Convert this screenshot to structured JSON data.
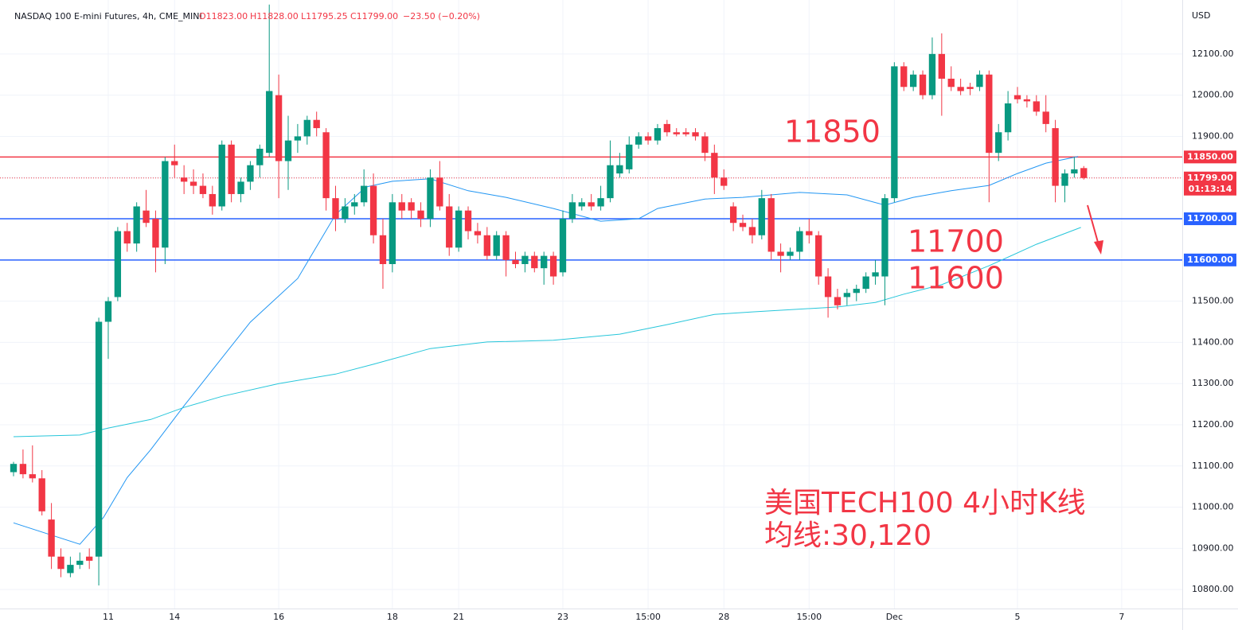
{
  "chart_data": {
    "type": "candlestick",
    "header": {
      "symbol": "NASDAQ 100 E-mini Futures, 4h, CME_MINI",
      "ohlc": [
        "O11823.00",
        "H11828.00",
        "L11795.25",
        "C11799.00"
      ],
      "change": "−23.50 (−0.20%)"
    },
    "currency": "USD",
    "up_color": "#089981",
    "down_color": "#f23645",
    "candles": [
      [
        11085,
        11110,
        11075,
        11105
      ],
      [
        11105,
        11140,
        11070,
        11080
      ],
      [
        11080,
        11150,
        11060,
        11070
      ],
      [
        11070,
        11090,
        10980,
        10990
      ],
      [
        10970,
        11010,
        10850,
        10880
      ],
      [
        10880,
        10900,
        10830,
        10850
      ],
      [
        10840,
        10880,
        10830,
        10860
      ],
      [
        10860,
        10890,
        10850,
        10870
      ],
      [
        10880,
        10900,
        10850,
        10870
      ],
      [
        10880,
        11460,
        10810,
        11450
      ],
      [
        11450,
        11510,
        11360,
        11500
      ],
      [
        11510,
        11680,
        11500,
        11670
      ],
      [
        11670,
        11690,
        11620,
        11640
      ],
      [
        11640,
        11740,
        11620,
        11730
      ],
      [
        11720,
        11770,
        11680,
        11690
      ],
      [
        11700,
        11720,
        11570,
        11630
      ],
      [
        11630,
        11850,
        11590,
        11840
      ],
      [
        11840,
        11880,
        11800,
        11830
      ],
      [
        11800,
        11830,
        11760,
        11790
      ],
      [
        11790,
        11820,
        11760,
        11780
      ],
      [
        11780,
        11810,
        11750,
        11760
      ],
      [
        11760,
        11780,
        11710,
        11730
      ],
      [
        11730,
        11890,
        11720,
        11880
      ],
      [
        11880,
        11890,
        11740,
        11760
      ],
      [
        11760,
        11800,
        11740,
        11790
      ],
      [
        11790,
        11840,
        11770,
        11830
      ],
      [
        11830,
        11880,
        11800,
        11870
      ],
      [
        11860,
        12220,
        11850,
        12010
      ],
      [
        12000,
        12050,
        11750,
        11840
      ],
      [
        11840,
        11950,
        11770,
        11890
      ],
      [
        11890,
        11930,
        11860,
        11900
      ],
      [
        11900,
        11950,
        11880,
        11940
      ],
      [
        11940,
        11960,
        11900,
        11920
      ],
      [
        11910,
        11920,
        11720,
        11750
      ],
      [
        11750,
        11780,
        11670,
        11700
      ],
      [
        11700,
        11750,
        11690,
        11730
      ],
      [
        11730,
        11760,
        11710,
        11740
      ],
      [
        11740,
        11820,
        11730,
        11780
      ],
      [
        11780,
        11810,
        11640,
        11660
      ],
      [
        11660,
        11700,
        11530,
        11590
      ],
      [
        11590,
        11760,
        11570,
        11740
      ],
      [
        11740,
        11760,
        11700,
        11720
      ],
      [
        11740,
        11750,
        11700,
        11720
      ],
      [
        11720,
        11740,
        11680,
        11700
      ],
      [
        11700,
        11820,
        11680,
        11800
      ],
      [
        11800,
        11840,
        11720,
        11730
      ],
      [
        11730,
        11760,
        11610,
        11630
      ],
      [
        11630,
        11730,
        11620,
        11720
      ],
      [
        11720,
        11730,
        11650,
        11670
      ],
      [
        11670,
        11690,
        11640,
        11660
      ],
      [
        11660,
        11680,
        11600,
        11610
      ],
      [
        11610,
        11670,
        11600,
        11660
      ],
      [
        11660,
        11670,
        11560,
        11600
      ],
      [
        11600,
        11620,
        11580,
        11590
      ],
      [
        11590,
        11620,
        11570,
        11610
      ],
      [
        11610,
        11620,
        11570,
        11580
      ],
      [
        11580,
        11620,
        11540,
        11610
      ],
      [
        11610,
        11620,
        11540,
        11560
      ],
      [
        11570,
        11720,
        11560,
        11700
      ],
      [
        11700,
        11760,
        11690,
        11740
      ],
      [
        11730,
        11750,
        11720,
        11740
      ],
      [
        11740,
        11760,
        11720,
        11730
      ],
      [
        11730,
        11780,
        11720,
        11750
      ],
      [
        11750,
        11890,
        11740,
        11830
      ],
      [
        11810,
        11860,
        11800,
        11830
      ],
      [
        11820,
        11900,
        11810,
        11880
      ],
      [
        11880,
        11910,
        11870,
        11900
      ],
      [
        11900,
        11910,
        11880,
        11890
      ],
      [
        11890,
        11930,
        11880,
        11920
      ],
      [
        11930,
        11940,
        11900,
        11910
      ],
      [
        11910,
        11920,
        11900,
        11905
      ],
      [
        11910,
        11920,
        11900,
        11905
      ],
      [
        11910,
        11920,
        11890,
        11900
      ],
      [
        11900,
        11910,
        11840,
        11860
      ],
      [
        11860,
        11880,
        11760,
        11800
      ],
      [
        11800,
        11820,
        11770,
        11780
      ],
      [
        11730,
        11740,
        11670,
        11690
      ],
      [
        11690,
        11710,
        11670,
        11680
      ],
      [
        11680,
        11700,
        11640,
        11660
      ],
      [
        11660,
        11770,
        11650,
        11750
      ],
      [
        11750,
        11760,
        11600,
        11620
      ],
      [
        11620,
        11640,
        11570,
        11610
      ],
      [
        11610,
        11630,
        11600,
        11620
      ],
      [
        11620,
        11680,
        11600,
        11670
      ],
      [
        11670,
        11700,
        11640,
        11660
      ],
      [
        11660,
        11670,
        11540,
        11560
      ],
      [
        11560,
        11580,
        11460,
        11510
      ],
      [
        11510,
        11530,
        11480,
        11490
      ],
      [
        11510,
        11530,
        11490,
        11520
      ],
      [
        11520,
        11540,
        11500,
        11530
      ],
      [
        11530,
        11570,
        11520,
        11560
      ],
      [
        11560,
        11600,
        11540,
        11570
      ],
      [
        11560,
        11760,
        11490,
        11750
      ],
      [
        11750,
        12080,
        11740,
        12070
      ],
      [
        12070,
        12080,
        12010,
        12020
      ],
      [
        12020,
        12060,
        12010,
        12050
      ],
      [
        12050,
        12060,
        11990,
        12000
      ],
      [
        12000,
        12140,
        11990,
        12100
      ],
      [
        12100,
        12150,
        11950,
        12040
      ],
      [
        12040,
        12070,
        12010,
        12020
      ],
      [
        12020,
        12040,
        12000,
        12010
      ],
      [
        12020,
        12030,
        12000,
        12015
      ],
      [
        12020,
        12060,
        12010,
        12050
      ],
      [
        12050,
        12060,
        11740,
        11860
      ],
      [
        11860,
        11930,
        11840,
        11910
      ],
      [
        11910,
        12010,
        11890,
        11980
      ],
      [
        12000,
        12020,
        11980,
        11990
      ],
      [
        11990,
        12000,
        11970,
        11985
      ],
      [
        11985,
        12000,
        11950,
        11960
      ],
      [
        11960,
        12000,
        11910,
        11930
      ],
      [
        11920,
        11940,
        11740,
        11780
      ],
      [
        11780,
        11820,
        11740,
        11810
      ],
      [
        11810,
        11850,
        11800,
        11820
      ],
      [
        11823,
        11828,
        11795.25,
        11799
      ]
    ],
    "ma_lines": [
      {
        "color": "#2196f3",
        "x": [
          0,
          7,
          9.5,
          12,
          14.5,
          18,
          21,
          25,
          30,
          34,
          37.2,
          40,
          44,
          48,
          52,
          57,
          62,
          66,
          68,
          73,
          77,
          83,
          88,
          92,
          95,
          99,
          103,
          106,
          109,
          112.4
        ],
        "values": [
          10962,
          10910,
          10975,
          11072,
          11140,
          11246,
          11333,
          11449,
          11555,
          11710,
          11777,
          11791,
          11797,
          11768,
          11752,
          11725,
          11694,
          11700,
          11725,
          11748,
          11752,
          11764,
          11758,
          11733,
          11752,
          11768,
          11781,
          11810,
          11835,
          11851
        ]
      },
      {
        "color": "#26c6da",
        "x": [
          0,
          7,
          10,
          14.5,
          18,
          22,
          28,
          34,
          38,
          44,
          50,
          57,
          64,
          69,
          74,
          78,
          87,
          91,
          94,
          98,
          103,
          108,
          112.7
        ],
        "values": [
          11171,
          11175,
          11192,
          11213,
          11242,
          11269,
          11300,
          11323,
          11347,
          11385,
          11401,
          11405,
          11420,
          11443,
          11468,
          11474,
          11486,
          11497,
          11517,
          11540,
          11586,
          11638,
          11679
        ]
      }
    ],
    "levels": [
      {
        "value": 11850,
        "label": "11850.00",
        "color": "#f23645"
      },
      {
        "value": 11700,
        "label": "11700.00",
        "color": "#2962ff"
      },
      {
        "value": 11600,
        "label": "11600.00",
        "color": "#2962ff"
      }
    ],
    "last_price": {
      "value": 11799,
      "label": "11799.00",
      "countdown": "01:13:14",
      "color": "#f23645"
    },
    "annotations": [
      "11850",
      "11700",
      "11600",
      "美国TECH100 4小时K线",
      "均线:30,120"
    ],
    "xlim": [
      -1.43,
      123.4
    ],
    "xticks": [
      {
        "value": 10,
        "label": "11"
      },
      {
        "value": 17,
        "label": "14"
      },
      {
        "value": 28,
        "label": "16"
      },
      {
        "value": 40,
        "label": "18"
      },
      {
        "value": 47,
        "label": "21"
      },
      {
        "value": 58,
        "label": "23"
      },
      {
        "value": 67,
        "label": "15:00"
      },
      {
        "value": 75,
        "label": "28"
      },
      {
        "value": 84,
        "label": "15:00"
      },
      {
        "value": 93,
        "label": "Dec"
      },
      {
        "value": 106,
        "label": "5"
      },
      {
        "value": 117,
        "label": "7"
      }
    ],
    "ylim": [
      10754,
      12231
    ],
    "yticks": [
      {
        "value": 10800,
        "label": "10800.00"
      },
      {
        "value": 10900,
        "label": "10900.00"
      },
      {
        "value": 11000,
        "label": "11000.00"
      },
      {
        "value": 11100,
        "label": "11100.00"
      },
      {
        "value": 11200,
        "label": "11200.00"
      },
      {
        "value": 11300,
        "label": "11300.00"
      },
      {
        "value": 11400,
        "label": "11400.00"
      },
      {
        "value": 11500,
        "label": "11500.00"
      },
      {
        "value": 11600,
        "label": "11600.00"
      },
      {
        "value": 11700,
        "label": "11700.00"
      },
      {
        "value": 11800,
        "label": "11800.00"
      },
      {
        "value": 11900,
        "label": "11900.00"
      },
      {
        "value": 12000,
        "label": "12000.00"
      },
      {
        "value": 12100,
        "label": "12100.00"
      }
    ],
    "grid": true
  }
}
